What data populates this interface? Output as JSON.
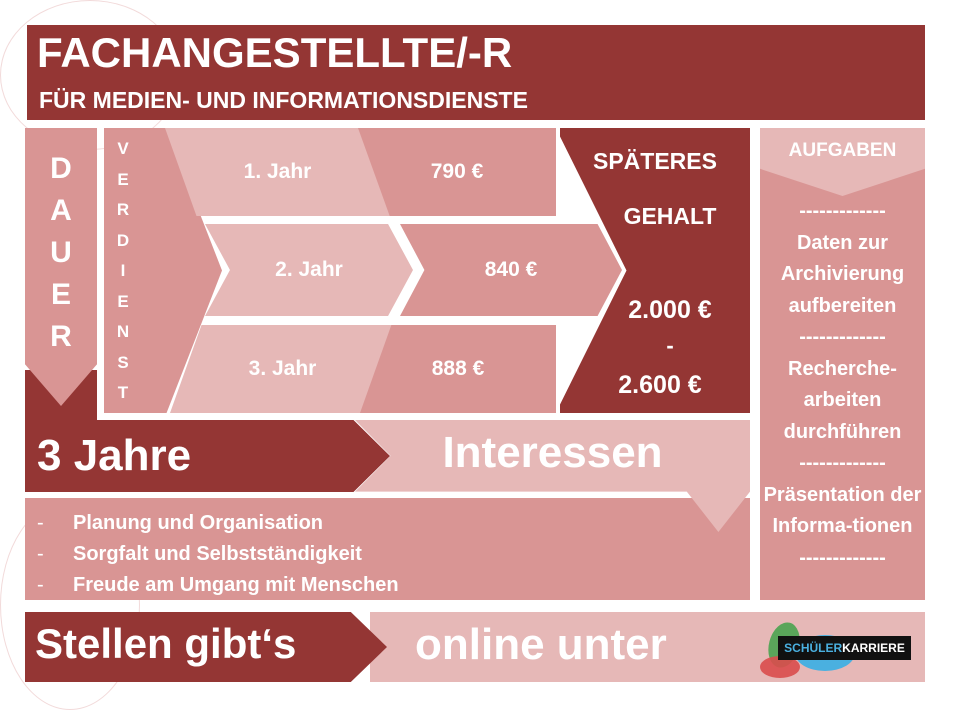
{
  "header": {
    "title": "FACHANGESTELLTE/-R",
    "subtitle": "FÜR MEDIEN- UND INFORMATIONSDIENSTE"
  },
  "dauer": {
    "label": [
      "D",
      "A",
      "U",
      "E",
      "R"
    ],
    "value": "3 Jahre"
  },
  "verdienst": {
    "label": [
      "V",
      "E",
      "R",
      "D",
      "I",
      "E",
      "N",
      "S",
      "T"
    ],
    "rows": [
      {
        "year": "1. Jahr",
        "pay": "790 €"
      },
      {
        "year": "2. Jahr",
        "pay": "840 €"
      },
      {
        "year": "3. Jahr",
        "pay": "888 €"
      }
    ]
  },
  "gehalt": {
    "title1": "SPÄTERES",
    "title2": "GEHALT",
    "from": "2.000 €",
    "dash": "-",
    "to": "2.600 €"
  },
  "aufgaben": {
    "title": "AUFGABEN",
    "sep": "-------------",
    "items": [
      "Daten zur Archivierung aufbereiten",
      "Recherche-arbeiten durchführen",
      "Präsentation der Informa-tionen"
    ]
  },
  "interessen": {
    "title": "Interessen",
    "items": [
      "Planung und Organisation",
      "Sorgfalt und Selbstständigkeit",
      "Freude am Umgang mit Menschen"
    ]
  },
  "footer": {
    "left": "Stellen gibt‘s",
    "right": "online unter",
    "logo": {
      "part1": "SCHÜLER",
      "part2": "KARRIERE"
    }
  },
  "colors": {
    "dark": "#943634",
    "medium": "#d99594",
    "light": "#e6b8b7"
  }
}
